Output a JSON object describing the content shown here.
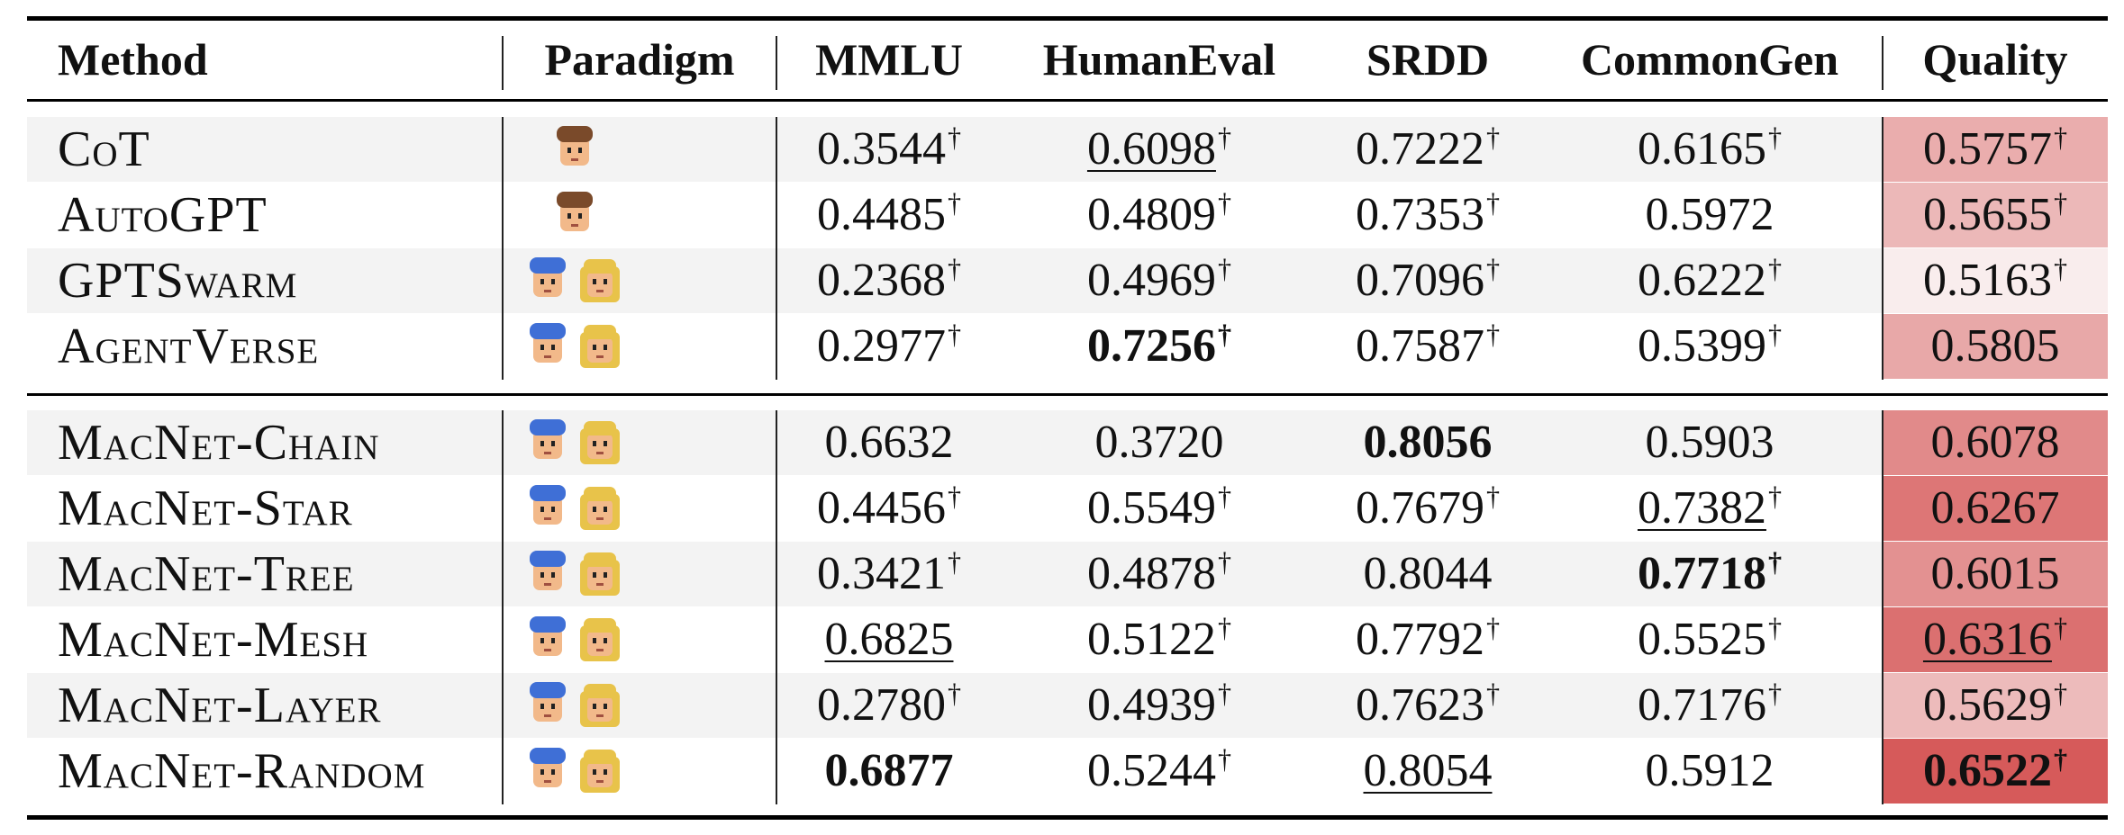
{
  "table": {
    "headers": {
      "method": "Method",
      "paradigm": "Paradigm",
      "mmlu": "MMLU",
      "humaneval": "HumanEval",
      "srdd": "SRDD",
      "commongen": "CommonGen",
      "quality": "Quality"
    },
    "significance_mark": "†",
    "colors": {
      "quality_low": "#f9eded",
      "quality_high": "#d65a5a",
      "row_shade": "#f3f3f3"
    },
    "groups": [
      {
        "rows": [
          {
            "method": "CoT",
            "paradigm": "single-agent-icon",
            "mmlu": {
              "v": "0.3544",
              "dagger": true
            },
            "humaneval": {
              "v": "0.6098",
              "dagger": true,
              "style": "underline"
            },
            "srdd": {
              "v": "0.7222",
              "dagger": true
            },
            "commongen": {
              "v": "0.6165",
              "dagger": true
            },
            "quality": {
              "v": "0.5757",
              "dagger": true
            }
          },
          {
            "method": "AutoGPT",
            "paradigm": "single-agent-icon",
            "mmlu": {
              "v": "0.4485",
              "dagger": true
            },
            "humaneval": {
              "v": "0.4809",
              "dagger": true
            },
            "srdd": {
              "v": "0.7353",
              "dagger": true
            },
            "commongen": {
              "v": "0.5972",
              "dagger": false
            },
            "quality": {
              "v": "0.5655",
              "dagger": true
            }
          },
          {
            "method": "GPTSwarm",
            "paradigm": "multi-agent-icon",
            "mmlu": {
              "v": "0.2368",
              "dagger": true
            },
            "humaneval": {
              "v": "0.4969",
              "dagger": true
            },
            "srdd": {
              "v": "0.7096",
              "dagger": true
            },
            "commongen": {
              "v": "0.6222",
              "dagger": true
            },
            "quality": {
              "v": "0.5163",
              "dagger": true
            }
          },
          {
            "method": "AgentVerse",
            "paradigm": "multi-agent-icon",
            "mmlu": {
              "v": "0.2977",
              "dagger": true
            },
            "humaneval": {
              "v": "0.7256",
              "dagger": true,
              "style": "bold"
            },
            "srdd": {
              "v": "0.7587",
              "dagger": true
            },
            "commongen": {
              "v": "0.5399",
              "dagger": true
            },
            "quality": {
              "v": "0.5805",
              "dagger": false
            }
          }
        ]
      },
      {
        "rows": [
          {
            "method": "MacNet-Chain",
            "paradigm": "multi-agent-icon",
            "mmlu": {
              "v": "0.6632",
              "dagger": false
            },
            "humaneval": {
              "v": "0.3720",
              "dagger": false
            },
            "srdd": {
              "v": "0.8056",
              "dagger": false,
              "style": "bold"
            },
            "commongen": {
              "v": "0.5903",
              "dagger": false
            },
            "quality": {
              "v": "0.6078",
              "dagger": false
            }
          },
          {
            "method": "MacNet-Star",
            "paradigm": "multi-agent-icon",
            "mmlu": {
              "v": "0.4456",
              "dagger": true
            },
            "humaneval": {
              "v": "0.5549",
              "dagger": true
            },
            "srdd": {
              "v": "0.7679",
              "dagger": true
            },
            "commongen": {
              "v": "0.7382",
              "dagger": true,
              "style": "underline"
            },
            "quality": {
              "v": "0.6267",
              "dagger": false
            }
          },
          {
            "method": "MacNet-Tree",
            "paradigm": "multi-agent-icon",
            "mmlu": {
              "v": "0.3421",
              "dagger": true
            },
            "humaneval": {
              "v": "0.4878",
              "dagger": true
            },
            "srdd": {
              "v": "0.8044",
              "dagger": false
            },
            "commongen": {
              "v": "0.7718",
              "dagger": true,
              "style": "bold"
            },
            "quality": {
              "v": "0.6015",
              "dagger": false
            }
          },
          {
            "method": "MacNet-Mesh",
            "paradigm": "multi-agent-icon",
            "mmlu": {
              "v": "0.6825",
              "dagger": false,
              "style": "underline"
            },
            "humaneval": {
              "v": "0.5122",
              "dagger": true
            },
            "srdd": {
              "v": "0.7792",
              "dagger": true
            },
            "commongen": {
              "v": "0.5525",
              "dagger": true
            },
            "quality": {
              "v": "0.6316",
              "dagger": true,
              "style": "underline"
            }
          },
          {
            "method": "MacNet-Layer",
            "paradigm": "multi-agent-icon",
            "mmlu": {
              "v": "0.2780",
              "dagger": true
            },
            "humaneval": {
              "v": "0.4939",
              "dagger": true
            },
            "srdd": {
              "v": "0.7623",
              "dagger": true
            },
            "commongen": {
              "v": "0.7176",
              "dagger": true
            },
            "quality": {
              "v": "0.5629",
              "dagger": true
            }
          },
          {
            "method": "MacNet-Random",
            "paradigm": "multi-agent-icon",
            "mmlu": {
              "v": "0.6877",
              "dagger": false,
              "style": "bold"
            },
            "humaneval": {
              "v": "0.5244",
              "dagger": true
            },
            "srdd": {
              "v": "0.8054",
              "dagger": false,
              "style": "underline"
            },
            "commongen": {
              "v": "0.5912",
              "dagger": false
            },
            "quality": {
              "v": "0.6522",
              "dagger": true,
              "style": "bold"
            }
          }
        ]
      }
    ]
  }
}
